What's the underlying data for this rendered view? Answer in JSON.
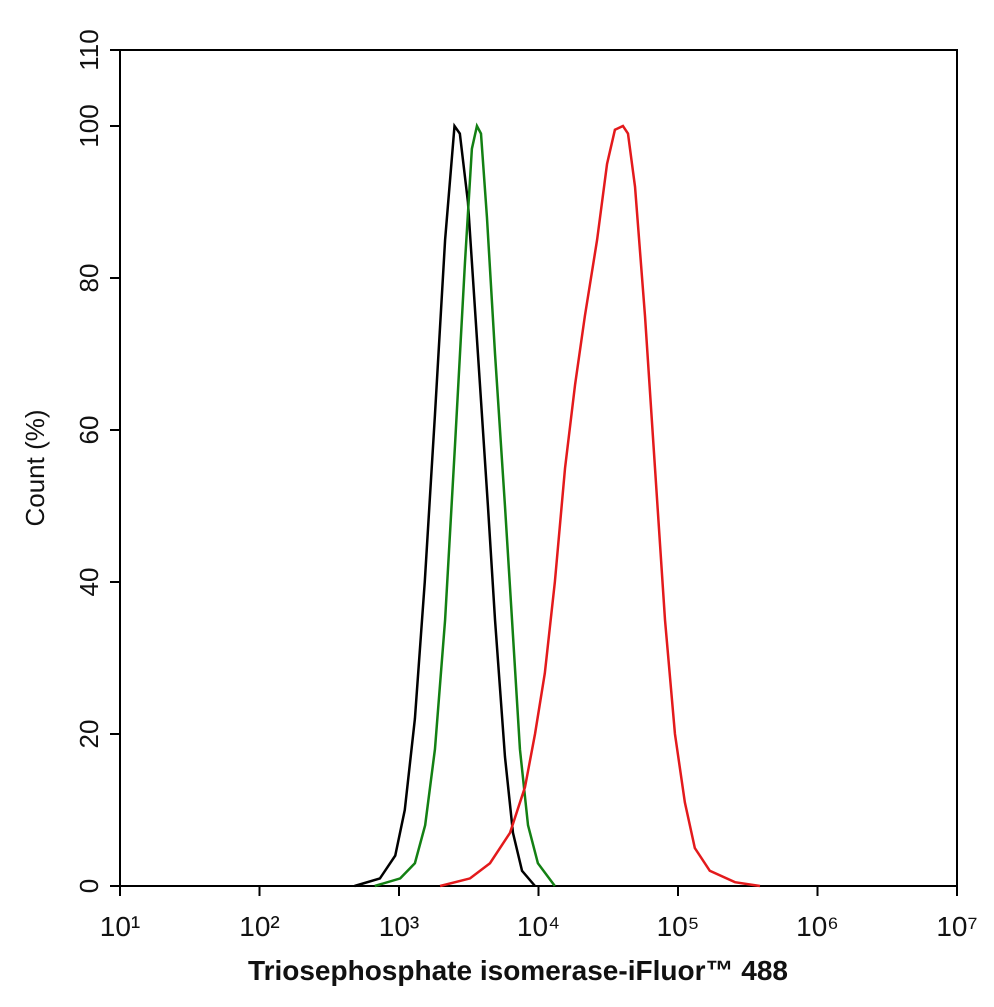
{
  "chart_data": {
    "type": "line",
    "xlabel": "Triosephosphate isomerase-iFluor™ 488",
    "ylabel": "Count  (%)",
    "xscale": "log",
    "xlim": [
      10,
      10000000
    ],
    "ylim": [
      0,
      110
    ],
    "xticks": [
      {
        "value": 10,
        "label": "10¹"
      },
      {
        "value": 100,
        "label": "10²"
      },
      {
        "value": 1000,
        "label": "10³"
      },
      {
        "value": 10000,
        "label": "10⁴"
      },
      {
        "value": 100000,
        "label": "10⁵"
      },
      {
        "value": 1000000,
        "label": "10⁶"
      },
      {
        "value": 10000000,
        "label": "10⁷"
      }
    ],
    "yticks": [
      0,
      20,
      40,
      60,
      80,
      100,
      110
    ],
    "series": [
      {
        "color": "#000000",
        "x": [
          480,
          730,
          940,
          1100,
          1300,
          1530,
          1810,
          2140,
          2500,
          2730,
          3120,
          3680,
          4340,
          4880,
          5750,
          6560,
          7620,
          9440
        ],
        "values": [
          0,
          1,
          4,
          10,
          22,
          40,
          62,
          85,
          100,
          99,
          90,
          70,
          50,
          35,
          17,
          7,
          2,
          0
        ]
      },
      {
        "color": "#138013",
        "x": [
          670,
          1020,
          1300,
          1540,
          1810,
          2140,
          2520,
          2970,
          3330,
          3620,
          3870,
          4270,
          4880,
          5750,
          6460,
          7360,
          8410,
          9900,
          13100
        ],
        "values": [
          0,
          1,
          3,
          8,
          18,
          35,
          58,
          82,
          97,
          100,
          99,
          88,
          70,
          50,
          35,
          18,
          8,
          3,
          0
        ]
      },
      {
        "color": "#e31a1c",
        "x": [
          1970,
          3230,
          4490,
          6250,
          8000,
          9440,
          11100,
          13100,
          15500,
          18300,
          21500,
          26300,
          31000,
          35300,
          40300,
          43800,
          49200,
          58000,
          68400,
          80700,
          95100,
          112000,
          132000,
          169000,
          256000,
          387000
        ],
        "values": [
          0,
          1,
          3,
          7,
          13,
          20,
          28,
          40,
          55,
          66,
          75,
          85,
          95,
          99.5,
          100,
          99,
          92,
          75,
          55,
          35,
          20,
          11,
          5,
          2,
          0.5,
          0
        ]
      }
    ]
  }
}
